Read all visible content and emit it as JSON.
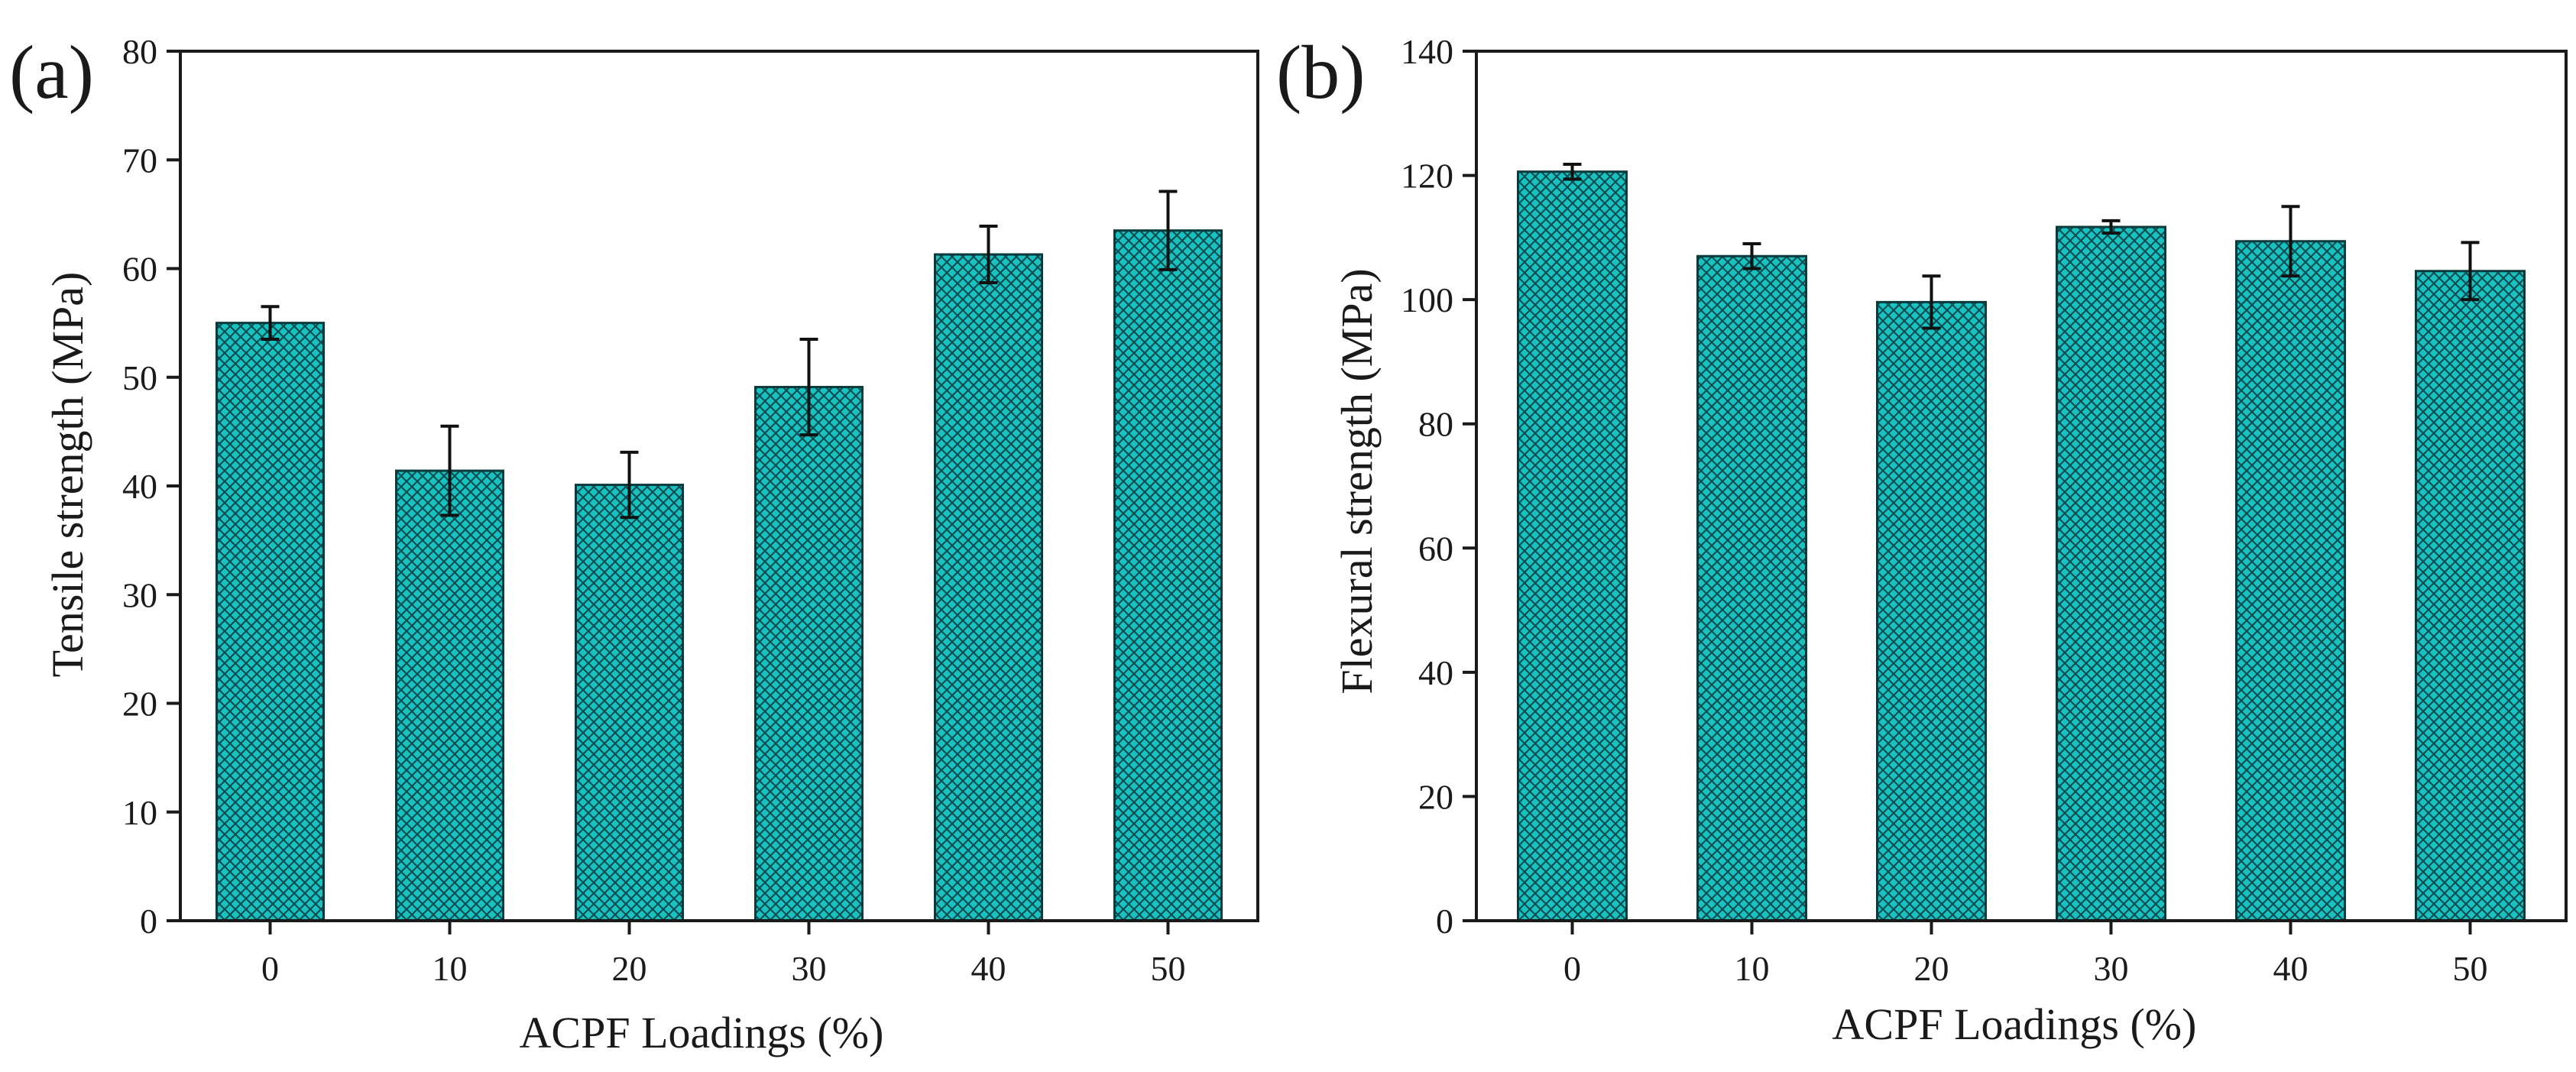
{
  "figure": {
    "bar_fill": "#18c2c0",
    "hatch_color": "#0a4e52",
    "bar_stroke": "#0b3a3c",
    "axis_color": "#1a1a1a"
  },
  "chart_data": [
    {
      "type": "bar",
      "panel_label": "(a)",
      "title": "",
      "xlabel": "ACPF Loadings (%)",
      "ylabel": "Tensile strength (MPa)",
      "categories": [
        "0",
        "10",
        "20",
        "30",
        "40",
        "50"
      ],
      "values": [
        55.0,
        41.4,
        40.1,
        49.1,
        61.3,
        63.5
      ],
      "errors": [
        1.5,
        4.1,
        3.0,
        4.4,
        2.6,
        3.6
      ],
      "ylim": [
        0,
        80
      ],
      "yticks": [
        "0",
        "10",
        "20",
        "30",
        "40",
        "50",
        "60",
        "70",
        "80"
      ],
      "grid": false,
      "legend": "none"
    },
    {
      "type": "bar",
      "panel_label": "(b)",
      "title": "",
      "xlabel": "ACPF Loadings (%)",
      "ylabel": "Flexural strength (MPa)",
      "categories": [
        "0",
        "10",
        "20",
        "30",
        "40",
        "50"
      ],
      "values": [
        120.6,
        107.0,
        99.6,
        111.7,
        109.4,
        104.6
      ],
      "errors": [
        1.2,
        2.0,
        4.2,
        1.0,
        5.6,
        4.6
      ],
      "ylim": [
        0,
        140
      ],
      "yticks": [
        "0",
        "20",
        "40",
        "60",
        "80",
        "100",
        "120",
        "140"
      ],
      "grid": false,
      "legend": "none"
    }
  ]
}
